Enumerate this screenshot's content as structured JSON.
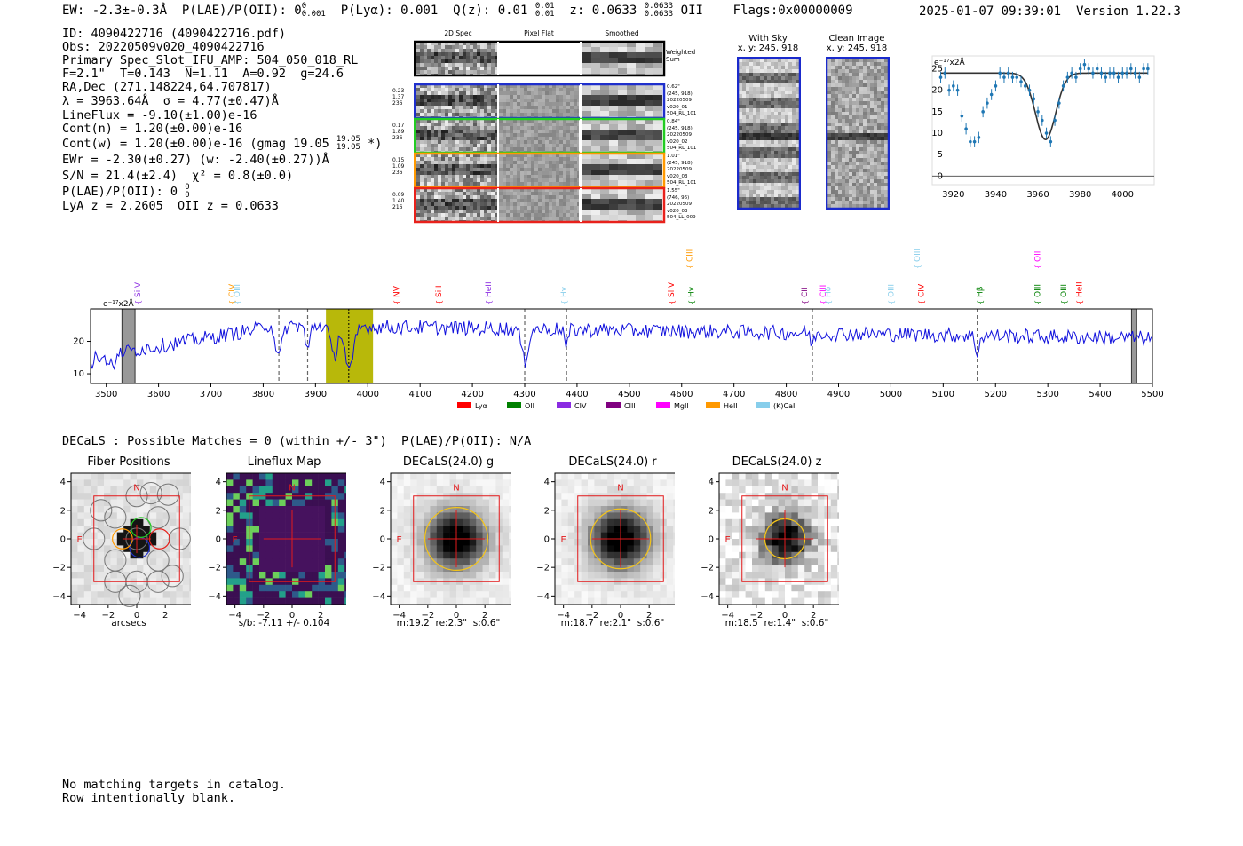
{
  "header": {
    "ew_text": "EW: -2.3±-0.3Å",
    "plae_text": "P(LAE)/P(OII): 0",
    "plae_sup": "0",
    "plae_sub": "0.001",
    "plya_text": "P(Lyα): 0.001",
    "qz_text": "Q(z): 0.01",
    "qz_sup": "0.01",
    "qz_sub": "0.01",
    "z_text": "z: 0.0633",
    "z_sup": "0.0633",
    "z_sub": "0.0633",
    "z_line": "OII",
    "flags": "Flags:0x00000009",
    "datetime": "2025-01-07 09:39:01",
    "version": "Version 1.22.3"
  },
  "info": {
    "id": "ID: 4090422716 (4090422716.pdf)",
    "obs": "Obs: 20220509v020_4090422716",
    "primary": "Primary Spec_Slot_IFU_AMP: 504_050_018_RL",
    "fwhm": "F=2.1\"  T=0.143  N=1.11  A=0.92  g=24.6",
    "radec": "RA,Dec (271.148224,64.707817)",
    "lambda": "λ = 3963.64Å  σ = 4.77(±0.47)Å",
    "lineflux": "LineFlux = -9.10(±1.00)e-16",
    "contn": "Cont(n) = 1.20(±0.00)e-16",
    "contw": "Cont(w) = 1.20(±0.00)e-16 (gmag 19.05",
    "contw_sup": "19.05",
    "contw_sub": "19.05",
    "contw_end": "*)",
    "ewr": "EWr = -2.30(±0.27) (w: -2.40(±0.27))Å",
    "sn": "S/N = 21.4(±2.4)  χ² = 0.8(±0.0)",
    "plae": "P(LAE)/P(OII): 0",
    "plae_sup": "0",
    "plae_sub": "0",
    "lyaz": "LyA z = 2.2605  OII z = 0.0633"
  },
  "stamps": {
    "headers": [
      "2D Spec",
      "Pixel Flat",
      "Smoothed"
    ],
    "weighted_label": "Weighted\nSum",
    "rows": [
      {
        "left": [
          "0.23",
          "1.37",
          "236"
        ],
        "right": [
          "0.62\"",
          "(245, 918)",
          "20220509",
          "v020_01",
          "504_RL_101"
        ],
        "color": "#1f2fcc"
      },
      {
        "left": [
          "0.17",
          "1.89",
          "236"
        ],
        "right": [
          "0.84\"",
          "(245, 918)",
          "20220509",
          "v020_02",
          "504_RL_101"
        ],
        "color": "#22cc22"
      },
      {
        "left": [
          "0.15",
          "1.09",
          "236"
        ],
        "right": [
          "1.01\"",
          "(245, 918)",
          "20220509",
          "v020_03",
          "504_RL_101"
        ],
        "color": "#ff9900"
      },
      {
        "left": [
          "0.09",
          "1.40",
          "216"
        ],
        "right": [
          "1.55\"",
          "(746, 96)",
          "20220509",
          "v020_03",
          "504_LL_009"
        ],
        "color": "#e8211b"
      }
    ]
  },
  "cutouts": {
    "with_sky_title": "With Sky",
    "with_sky_xy": "x, y: 245, 918",
    "clean_title": "Clean Image",
    "clean_xy": "x, y: 245, 918"
  },
  "zoom_chart_unit": "e⁻¹⁷x2Å",
  "full_spec_unit": "e⁻¹⁷x2Å",
  "chart_data": [
    {
      "type": "scatter",
      "title": "",
      "xlabel": "",
      "ylabel": "e-17x2Å",
      "xlim": [
        3910,
        4015
      ],
      "ylim": [
        -2,
        28
      ],
      "xticks": [
        3920,
        3940,
        3960,
        3980,
        4000
      ],
      "yticks": [
        0,
        5,
        10,
        15,
        20,
        25
      ],
      "x": [
        3914,
        3916,
        3918,
        3920,
        3922,
        3924,
        3926,
        3928,
        3930,
        3932,
        3934,
        3936,
        3938,
        3940,
        3942,
        3944,
        3946,
        3948,
        3950,
        3952,
        3954,
        3956,
        3958,
        3960,
        3962,
        3964,
        3966,
        3968,
        3970,
        3972,
        3974,
        3976,
        3978,
        3980,
        3982,
        3984,
        3986,
        3988,
        3990,
        3992,
        3994,
        3996,
        3998,
        4000,
        4002,
        4004,
        4006,
        4008,
        4010,
        4012
      ],
      "y": [
        23,
        24,
        20,
        21,
        20,
        14,
        11,
        8,
        8,
        9,
        15,
        17,
        19,
        21,
        24,
        23,
        24,
        23,
        23,
        22,
        21,
        20,
        18,
        15,
        13,
        10,
        8,
        13,
        17,
        21,
        23,
        24,
        23,
        25,
        26,
        25,
        24,
        25,
        24,
        23,
        24,
        24,
        23,
        24,
        24,
        25,
        24,
        23,
        25,
        25
      ],
      "fit": {
        "continuum": 24,
        "center": 3963.6,
        "sigma": 4.77,
        "depth": 15.5
      }
    },
    {
      "type": "line",
      "title": "",
      "xlabel": "",
      "ylabel": "e-17x2Å",
      "xlim": [
        3470,
        5500
      ],
      "ylim": [
        7,
        30
      ],
      "xticks": [
        3500,
        3600,
        3700,
        3800,
        3900,
        4000,
        4100,
        4200,
        4300,
        4400,
        4500,
        4600,
        4700,
        4800,
        4900,
        5000,
        5100,
        5200,
        5300,
        5400,
        5500
      ],
      "yticks": [
        10,
        20
      ],
      "highlight_range": [
        3920,
        4010
      ],
      "line_center": 3963.6,
      "dashed_lines": [
        3830,
        3885,
        4300,
        4380,
        4850,
        5165
      ],
      "masked_ranges": [
        [
          3530,
          3555
        ],
        [
          5460,
          5470
        ]
      ],
      "line_labels": [
        {
          "name": "SiIV",
          "wave": 3560,
          "color": "#8a2be2",
          "row": 2
        },
        {
          "name": "CIV",
          "wave": 3740,
          "color": "#ff9900",
          "row": 2
        },
        {
          "name": "OIII",
          "wave": 3750,
          "color": "#87ceeb",
          "row": 2
        },
        {
          "name": "NV",
          "wave": 4055,
          "color": "#ff0000",
          "row": 2
        },
        {
          "name": "SiII",
          "wave": 4135,
          "color": "#ff0000",
          "row": 2
        },
        {
          "name": "HeII",
          "wave": 4230,
          "color": "#8a2be2",
          "row": 2
        },
        {
          "name": "Hγ",
          "wave": 4375,
          "color": "#87ceeb",
          "row": 2
        },
        {
          "name": "SiIV",
          "wave": 4580,
          "color": "#ff0000",
          "row": 2
        },
        {
          "name": "CIII",
          "wave": 4615,
          "color": "#ff9900",
          "row": 0
        },
        {
          "name": "Hγ",
          "wave": 4618,
          "color": "#008000",
          "row": 2
        },
        {
          "name": "CII",
          "wave": 4835,
          "color": "#800080",
          "row": 2
        },
        {
          "name": "CIII",
          "wave": 4870,
          "color": "#ff00ff",
          "row": 2
        },
        {
          "name": "Hδ",
          "wave": 4880,
          "color": "#87ceeb",
          "row": 2
        },
        {
          "name": "OIII",
          "wave": 5000,
          "color": "#87ceeb",
          "row": 2
        },
        {
          "name": "OIII",
          "wave": 5050,
          "color": "#87ceeb",
          "row": 0
        },
        {
          "name": "CIV",
          "wave": 5058,
          "color": "#ff0000",
          "row": 2
        },
        {
          "name": "Hβ",
          "wave": 5170,
          "color": "#008000",
          "row": 2
        },
        {
          "name": "OII",
          "wave": 5280,
          "color": "#ff00ff",
          "row": 0
        },
        {
          "name": "OIII",
          "wave": 5280,
          "color": "#008000",
          "row": 2
        },
        {
          "name": "OIII",
          "wave": 5330,
          "color": "#008000",
          "row": 2
        },
        {
          "name": "HeII",
          "wave": 5360,
          "color": "#ff0000",
          "row": 2
        }
      ],
      "legend": [
        {
          "label": "Lyα",
          "color": "#ff0000"
        },
        {
          "label": "OII",
          "color": "#008000"
        },
        {
          "label": "CIV",
          "color": "#8a2be2"
        },
        {
          "label": "CIII",
          "color": "#800080"
        },
        {
          "label": "MgII",
          "color": "#ff00ff"
        },
        {
          "label": "HeII",
          "color": "#ff9900"
        },
        {
          "label": "(K)CaII",
          "color": "#87ceeb"
        }
      ]
    }
  ],
  "decals": {
    "summary": "DECaLS : Possible Matches = 0 (within +/- 3\")  P(LAE)/P(OII): N/A",
    "panels": [
      {
        "title": "Fiber Positions",
        "subtitle": "arcsecs"
      },
      {
        "title": "Lineflux Map",
        "subtitle": "s/b: -7.11 +/- 0.104"
      },
      {
        "title": "DECaLS(24.0) g",
        "subtitle": "m:19.2  re:2.3\"  s:0.6\""
      },
      {
        "title": "DECaLS(24.0) r",
        "subtitle": "m:18.7  re:2.1\"  s:0.6\""
      },
      {
        "title": "DECaLS(24.0) z",
        "subtitle": "m:18.5  re:1.4\"  s:0.6\""
      }
    ],
    "axis_ticks": [
      "4",
      "2",
      "0",
      "−2",
      "−4"
    ],
    "x_ticks": [
      "−4",
      "−2",
      "0",
      "2",
      "4"
    ],
    "north_label": "N",
    "east_label": "E"
  },
  "footer": {
    "line1": "No matching targets in catalog.",
    "line2": "Row intentionally blank."
  }
}
